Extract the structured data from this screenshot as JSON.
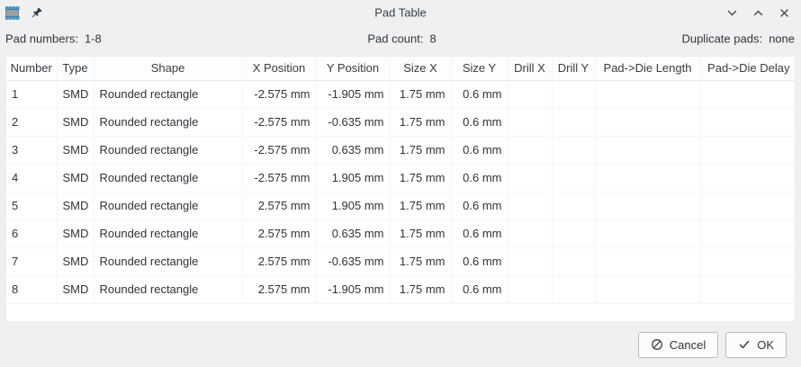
{
  "window": {
    "title": "Pad Table",
    "titlebar_icons": [
      "footprint-icon",
      "pin-icon"
    ],
    "controls": [
      "chevron-down-icon",
      "chevron-up-icon",
      "close-icon"
    ]
  },
  "summary": {
    "pad_numbers_label": "Pad numbers:",
    "pad_numbers_value": "1-8",
    "pad_count_label": "Pad count:",
    "pad_count_value": "8",
    "duplicate_pads_label": "Duplicate pads:",
    "duplicate_pads_value": "none"
  },
  "table": {
    "columns": [
      "Number",
      "Type",
      "Shape",
      "X Position",
      "Y Position",
      "Size X",
      "Size Y",
      "Drill X",
      "Drill Y",
      "Pad->Die Length",
      "Pad->Die Delay"
    ],
    "rows": [
      [
        "1",
        "SMD",
        "Rounded rectangle",
        "-2.575 mm",
        "-1.905 mm",
        "1.75 mm",
        "0.6 mm",
        "",
        "",
        "",
        ""
      ],
      [
        "2",
        "SMD",
        "Rounded rectangle",
        "-2.575 mm",
        "-0.635 mm",
        "1.75 mm",
        "0.6 mm",
        "",
        "",
        "",
        ""
      ],
      [
        "3",
        "SMD",
        "Rounded rectangle",
        "-2.575 mm",
        "0.635 mm",
        "1.75 mm",
        "0.6 mm",
        "",
        "",
        "",
        ""
      ],
      [
        "4",
        "SMD",
        "Rounded rectangle",
        "-2.575 mm",
        "1.905 mm",
        "1.75 mm",
        "0.6 mm",
        "",
        "",
        "",
        ""
      ],
      [
        "5",
        "SMD",
        "Rounded rectangle",
        "2.575 mm",
        "1.905 mm",
        "1.75 mm",
        "0.6 mm",
        "",
        "",
        "",
        ""
      ],
      [
        "6",
        "SMD",
        "Rounded rectangle",
        "2.575 mm",
        "0.635 mm",
        "1.75 mm",
        "0.6 mm",
        "",
        "",
        "",
        ""
      ],
      [
        "7",
        "SMD",
        "Rounded rectangle",
        "2.575 mm",
        "-0.635 mm",
        "1.75 mm",
        "0.6 mm",
        "",
        "",
        "",
        ""
      ],
      [
        "8",
        "SMD",
        "Rounded rectangle",
        "2.575 mm",
        "-1.905 mm",
        "1.75 mm",
        "0.6 mm",
        "",
        "",
        "",
        ""
      ]
    ]
  },
  "footer": {
    "cancel_label": "Cancel",
    "cancel_icon": "cancel-prohibition-icon",
    "ok_label": "OK",
    "ok_icon": "check-icon"
  },
  "colors": {
    "dialog_bg": "#eff0f1",
    "table_bg": "#ffffff",
    "grid_line": "#f5f6f6",
    "text": "#31363b",
    "button_border": "#b9bcbe",
    "pad_blue": "#2a8cc9",
    "icon_gray": "#9aa0a4"
  }
}
